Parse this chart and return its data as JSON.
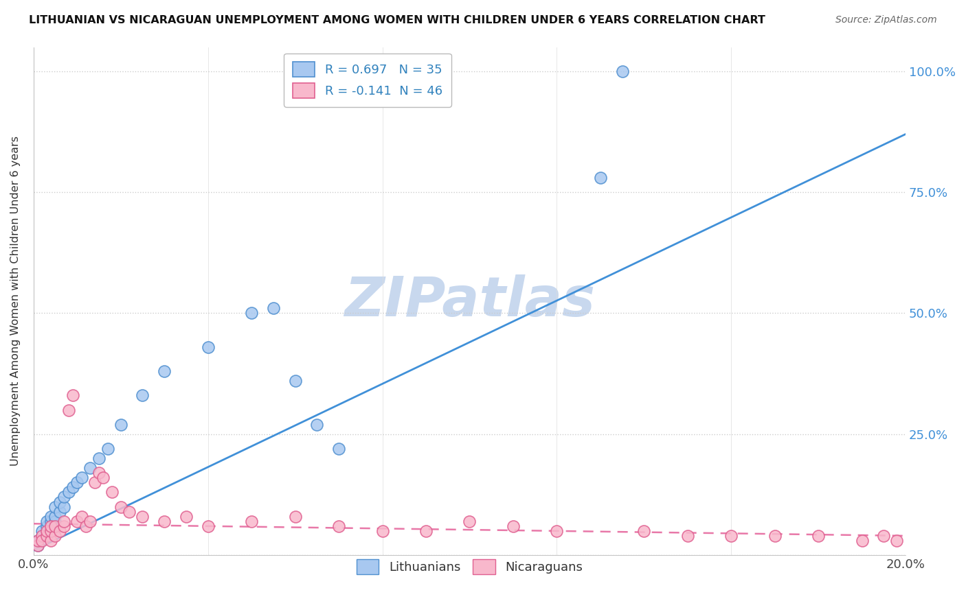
{
  "title": "LITHUANIAN VS NICARAGUAN UNEMPLOYMENT AMONG WOMEN WITH CHILDREN UNDER 6 YEARS CORRELATION CHART",
  "source": "Source: ZipAtlas.com",
  "ylabel": "Unemployment Among Women with Children Under 6 years",
  "xlim": [
    0.0,
    0.2
  ],
  "ylim": [
    0.0,
    1.05
  ],
  "xticks": [
    0.0,
    0.04,
    0.08,
    0.12,
    0.16,
    0.2
  ],
  "xticklabels": [
    "0.0%",
    "",
    "",
    "",
    "",
    "20.0%"
  ],
  "ytick_positions": [
    0.0,
    0.25,
    0.5,
    0.75,
    1.0
  ],
  "yticklabels": [
    "",
    "25.0%",
    "50.0%",
    "75.0%",
    "100.0%"
  ],
  "blue_R": 0.697,
  "blue_N": 35,
  "pink_R": -0.141,
  "pink_N": 46,
  "blue_color": "#a8c8f0",
  "pink_color": "#f8b8cc",
  "blue_edge_color": "#5090d0",
  "pink_edge_color": "#e06090",
  "blue_line_color": "#4090d8",
  "pink_line_color": "#e878a8",
  "watermark": "ZIPatlas",
  "watermark_color": "#c8d8ee",
  "legend_blue_label": "Lithuanians",
  "legend_pink_label": "Nicaraguans",
  "blue_scatter_x": [
    0.001,
    0.001,
    0.002,
    0.002,
    0.003,
    0.003,
    0.003,
    0.004,
    0.004,
    0.004,
    0.005,
    0.005,
    0.005,
    0.006,
    0.006,
    0.007,
    0.007,
    0.008,
    0.009,
    0.01,
    0.011,
    0.013,
    0.015,
    0.017,
    0.02,
    0.025,
    0.03,
    0.04,
    0.05,
    0.055,
    0.06,
    0.065,
    0.07,
    0.13,
    0.135
  ],
  "blue_scatter_y": [
    0.02,
    0.03,
    0.04,
    0.05,
    0.05,
    0.06,
    0.07,
    0.06,
    0.07,
    0.08,
    0.07,
    0.08,
    0.1,
    0.09,
    0.11,
    0.1,
    0.12,
    0.13,
    0.14,
    0.15,
    0.16,
    0.18,
    0.2,
    0.22,
    0.27,
    0.33,
    0.38,
    0.43,
    0.5,
    0.51,
    0.36,
    0.27,
    0.22,
    0.78,
    1.0
  ],
  "pink_scatter_x": [
    0.001,
    0.001,
    0.002,
    0.002,
    0.003,
    0.003,
    0.004,
    0.004,
    0.004,
    0.005,
    0.005,
    0.006,
    0.007,
    0.007,
    0.008,
    0.009,
    0.01,
    0.011,
    0.012,
    0.013,
    0.014,
    0.015,
    0.016,
    0.018,
    0.02,
    0.022,
    0.025,
    0.03,
    0.035,
    0.04,
    0.05,
    0.06,
    0.07,
    0.08,
    0.09,
    0.1,
    0.11,
    0.12,
    0.14,
    0.15,
    0.16,
    0.17,
    0.18,
    0.19,
    0.195,
    0.198
  ],
  "pink_scatter_y": [
    0.02,
    0.03,
    0.04,
    0.03,
    0.04,
    0.05,
    0.03,
    0.05,
    0.06,
    0.04,
    0.06,
    0.05,
    0.06,
    0.07,
    0.3,
    0.33,
    0.07,
    0.08,
    0.06,
    0.07,
    0.15,
    0.17,
    0.16,
    0.13,
    0.1,
    0.09,
    0.08,
    0.07,
    0.08,
    0.06,
    0.07,
    0.08,
    0.06,
    0.05,
    0.05,
    0.07,
    0.06,
    0.05,
    0.05,
    0.04,
    0.04,
    0.04,
    0.04,
    0.03,
    0.04,
    0.03
  ],
  "blue_line_x0": 0.0,
  "blue_line_y0": 0.01,
  "blue_line_x1": 0.2,
  "blue_line_y1": 0.87,
  "pink_line_x0": 0.0,
  "pink_line_y0": 0.065,
  "pink_line_x1": 0.2,
  "pink_line_y1": 0.04
}
